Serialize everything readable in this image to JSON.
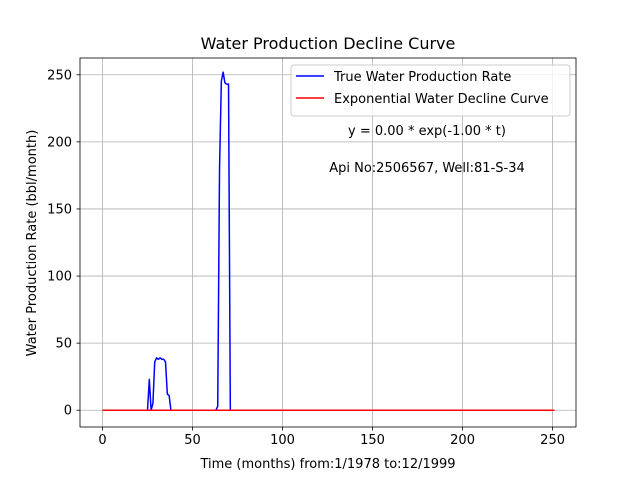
{
  "chart_data": {
    "type": "line",
    "title": "Water Production Decline Curve",
    "xlabel": "Time (months) from:1/1978 to:12/1999",
    "ylabel": "Water Production Rate (bbl/month)",
    "xlim": [
      -12.5,
      263
    ],
    "ylim": [
      -12.5,
      262.5
    ],
    "x_ticks": [
      0,
      50,
      100,
      150,
      200,
      250
    ],
    "y_ticks": [
      0,
      50,
      100,
      150,
      200,
      250
    ],
    "grid": true,
    "legend_position": "top-right",
    "annotations": [
      "y = 0.00 * exp(-1.00 * t)",
      "Api No:2506567, Well:81-S-34"
    ],
    "series": [
      {
        "name": "True Water Production Rate",
        "color": "#0000ff",
        "points": [
          [
            0,
            0
          ],
          [
            25,
            0
          ],
          [
            26,
            23
          ],
          [
            27,
            0
          ],
          [
            28,
            5
          ],
          [
            29,
            36
          ],
          [
            30,
            39
          ],
          [
            31,
            38
          ],
          [
            32,
            39
          ],
          [
            33,
            38
          ],
          [
            34,
            38
          ],
          [
            35,
            36
          ],
          [
            36,
            12
          ],
          [
            37,
            11
          ],
          [
            38,
            0
          ],
          [
            63,
            0
          ],
          [
            64,
            3
          ],
          [
            65,
            180
          ],
          [
            66,
            245
          ],
          [
            67,
            252
          ],
          [
            68,
            244
          ],
          [
            69,
            243
          ],
          [
            70,
            243
          ],
          [
            71,
            0
          ],
          [
            251,
            0
          ]
        ]
      },
      {
        "name": "Exponential Water Decline Curve",
        "color": "#ff0000",
        "points": [
          [
            0,
            0
          ],
          [
            251,
            0
          ]
        ]
      }
    ]
  }
}
